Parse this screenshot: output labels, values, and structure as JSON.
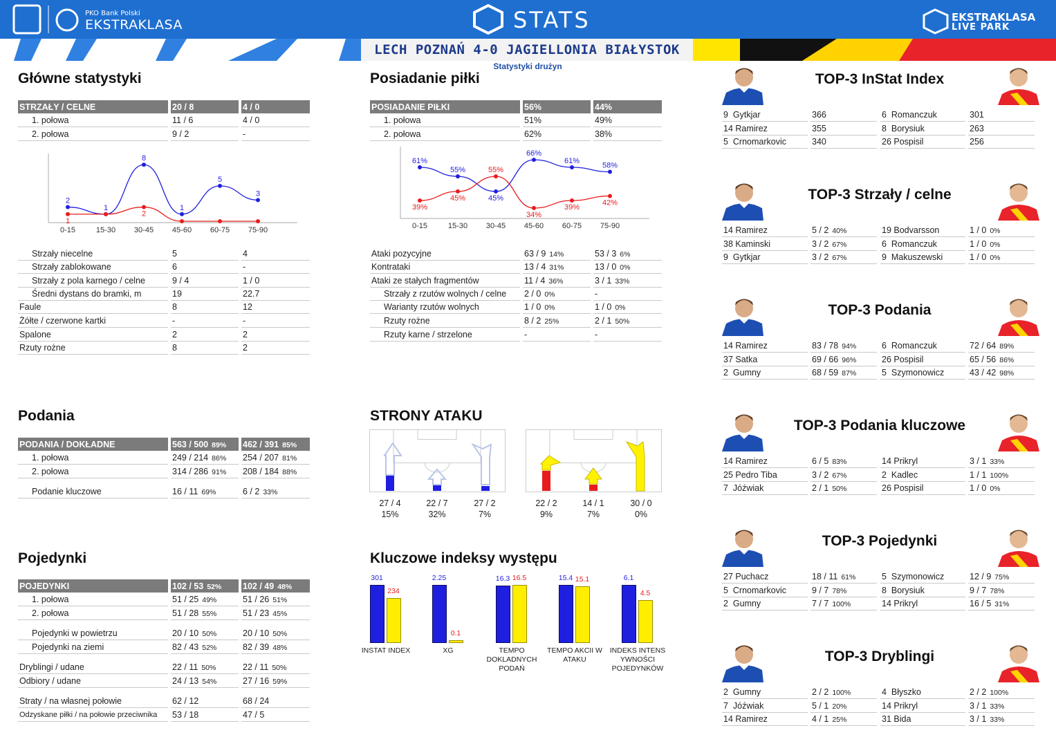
{
  "header": {
    "brand_top": "PKO Bank Polski",
    "brand": "EKSTRAKLASA",
    "stats": "STATS",
    "live1": "EKSTRAKLASA",
    "live2": "LIVE PARK",
    "score": "LECH POZNAŃ 4-0 JAGIELLONIA BIAŁYSTOK",
    "subtitle": "Statystyki drużyn"
  },
  "colors": {
    "home": "#1f1fe0",
    "away": "#e81c1c",
    "yellow": "#ffee00",
    "header_blue": "#1e6fd0"
  },
  "main_stats": {
    "title": "Główne statystyki",
    "header": [
      "STRZAŁY / CELNE",
      "20 / 8",
      "4 / 0"
    ],
    "halves": [
      [
        "1. połowa",
        "11 / 6",
        "4 / 0"
      ],
      [
        "2. połowa",
        "9 / 2",
        "-"
      ]
    ],
    "rows": [
      [
        "Strzały niecelne",
        "5",
        "4"
      ],
      [
        "Strzały zablokowane",
        "6",
        "-"
      ],
      [
        "Strzały z pola karnego / celne",
        "9 / 4",
        "1 / 0"
      ],
      [
        "Średni dystans do bramki, m",
        "19",
        "22.7"
      ],
      [
        "Faule",
        "8",
        "12"
      ],
      [
        "Żółte / czerwone kartki",
        "-",
        "-"
      ],
      [
        "Spalone",
        "2",
        "2"
      ],
      [
        "Rzuty rożne",
        "8",
        "2"
      ]
    ]
  },
  "possession": {
    "title": "Posiadanie piłki",
    "header": [
      "POSIADANIE PIŁKI",
      "56%",
      "44%"
    ],
    "halves": [
      [
        "1. połowa",
        "51%",
        "49%"
      ],
      [
        "2. połowa",
        "62%",
        "38%"
      ]
    ],
    "rows": [
      [
        "Ataki pozycyjne",
        "63 / 9",
        "14%",
        "53 / 3",
        "6%"
      ],
      [
        "Kontrataki",
        "13 / 4",
        "31%",
        "13 / 0",
        "0%"
      ],
      [
        "Ataki ze stałych fragmentów",
        "11 / 4",
        "36%",
        "3 / 1",
        "33%"
      ],
      [
        "Strzały z rzutów wolnych / celne",
        "2 / 0",
        "0%",
        "-",
        ""
      ],
      [
        "Warianty rzutów wolnych",
        "1 / 0",
        "0%",
        "1 / 0",
        "0%"
      ],
      [
        "Rzuty rożne",
        "8 / 2",
        "25%",
        "2 / 1",
        "50%"
      ],
      [
        "Rzuty karne / strzelone",
        "-",
        "",
        "-",
        ""
      ]
    ]
  },
  "passes": {
    "title": "Podania",
    "header": [
      "PODANIA / DOKŁADNE",
      "563 / 500",
      "89%",
      "462 / 391",
      "85%"
    ],
    "rows": [
      [
        "1. połowa",
        "249 / 214",
        "86%",
        "254 / 207",
        "81%"
      ],
      [
        "2. połowa",
        "314 / 286",
        "91%",
        "208 / 184",
        "88%"
      ]
    ],
    "key": [
      "Podanie kluczowe",
      "16 / 11",
      "69%",
      "6 / 2",
      "33%"
    ]
  },
  "duels": {
    "title": "Pojedynki",
    "header": [
      "POJEDYNKI",
      "102 / 53",
      "52%",
      "102 / 49",
      "48%"
    ],
    "halves": [
      [
        "1. połowa",
        "51 / 25",
        "49%",
        "51 / 26",
        "51%"
      ],
      [
        "2. połowa",
        "51 / 28",
        "55%",
        "51 / 23",
        "45%"
      ]
    ],
    "g2": [
      [
        "Pojedynki w powietrzu",
        "20 / 10",
        "50%",
        "20 / 10",
        "50%"
      ],
      [
        "Pojedynki na ziemi",
        "82 / 43",
        "52%",
        "82 / 39",
        "48%"
      ]
    ],
    "g3": [
      [
        "Dryblingi / udane",
        "22 / 11",
        "50%",
        "22 / 11",
        "50%"
      ],
      [
        "Odbiory / udane",
        "24 / 13",
        "54%",
        "27 / 16",
        "59%"
      ]
    ],
    "g4": [
      [
        "Straty / na własnej połowie",
        "62 / 12",
        "",
        "68 / 24",
        ""
      ],
      [
        "Odzyskane piłki / na połowie przeciwnika",
        "53 / 18",
        "",
        "47 / 5",
        ""
      ]
    ]
  },
  "attack": {
    "title": "STRONY ATAKU",
    "home": [
      [
        "27 / 4",
        "15%"
      ],
      [
        "22 / 7",
        "32%"
      ],
      [
        "27 / 2",
        "7%"
      ]
    ],
    "away": [
      [
        "22 / 2",
        "9%"
      ],
      [
        "14 / 1",
        "7%"
      ],
      [
        "30 / 0",
        "0%"
      ]
    ]
  },
  "indices": {
    "title": "Kluczowe indeksy występu",
    "items": [
      {
        "label": "INSTAT INDEX",
        "home": 301,
        "away": 234,
        "home_label": "301",
        "away_label": "234",
        "max": 301
      },
      {
        "label": "XG",
        "home": 2.25,
        "away": 0.1,
        "home_label": "2.25",
        "away_label": "0.1",
        "max": 2.25
      },
      {
        "label": "TEMPO DOKLADNYCH PODAŃ",
        "home": 16.3,
        "away": 16.5,
        "home_label": "16.3",
        "away_label": "16.5",
        "max": 16.5
      },
      {
        "label": "TEMPO AKCII W ATAKU",
        "home": 15.4,
        "away": 15.1,
        "home_label": "15.4",
        "away_label": "15.1",
        "max": 15.4
      },
      {
        "label": "INDEKS INTENS YWNOŚCI POJEDYNKÓW",
        "home": 6.1,
        "away": 4.5,
        "home_label": "6.1",
        "away_label": "4.5",
        "max": 6.1
      }
    ]
  },
  "chart_data": [
    {
      "type": "line",
      "categories": [
        "0-15",
        "15-30",
        "30-45",
        "45-60",
        "60-75",
        "75-90"
      ],
      "series": [
        {
          "values": [
            2,
            1,
            8,
            1,
            5,
            3
          ]
        },
        {
          "values": [
            1,
            1,
            2,
            0,
            0,
            0
          ]
        }
      ],
      "data_labels_home": [
        "2",
        "1",
        "8",
        "1",
        "5",
        "3"
      ],
      "data_labels_away": [
        "1",
        "",
        "2",
        "",
        "",
        ""
      ],
      "ylim": [
        0,
        9
      ]
    },
    {
      "type": "line",
      "categories": [
        "0-15",
        "15-30",
        "30-45",
        "45-60",
        "60-75",
        "75-90"
      ],
      "series": [
        {
          "values": [
            61,
            55,
            45,
            66,
            61,
            58
          ]
        },
        {
          "values": [
            39,
            45,
            55,
            34,
            39,
            42
          ]
        }
      ],
      "data_labels_home": [
        "61%",
        "55%",
        "45%",
        "66%",
        "61%",
        "58%"
      ],
      "data_labels_away": [
        "39%",
        "45%",
        "55%",
        "34%",
        "39%",
        "42%"
      ],
      "ylim": [
        28,
        72
      ]
    }
  ],
  "tops": [
    {
      "title": "TOP-3 InStat Index",
      "rows": [
        [
          "9  Gytkjar",
          "366",
          "",
          "6  Romanczuk",
          "301",
          ""
        ],
        [
          "14 Ramirez",
          "355",
          "",
          "8  Borysiuk",
          "263",
          ""
        ],
        [
          "5  Crnomarkovic",
          "340",
          "",
          "26 Pospisil",
          "256",
          ""
        ]
      ]
    },
    {
      "title": "TOP-3 Strzały / celne",
      "rows": [
        [
          "14 Ramirez",
          "5 / 2",
          "40%",
          "19 Bodvarsson",
          "1 / 0",
          "0%"
        ],
        [
          "38 Kaminski",
          "3 / 2",
          "67%",
          "6  Romanczuk",
          "1 / 0",
          "0%"
        ],
        [
          "9  Gytkjar",
          "3 / 2",
          "67%",
          "9  Makuszewski",
          "1 / 0",
          "0%"
        ]
      ]
    },
    {
      "title": "TOP-3 Podania",
      "rows": [
        [
          "14 Ramirez",
          "83 / 78",
          "94%",
          "6  Romanczuk",
          "72 / 64",
          "89%"
        ],
        [
          "37 Satka",
          "69 / 66",
          "96%",
          "26 Pospisil",
          "65 / 56",
          "86%"
        ],
        [
          "2  Gumny",
          "68 / 59",
          "87%",
          "5  Szymonowicz",
          "43 / 42",
          "98%"
        ]
      ]
    },
    {
      "title": "TOP-3 Podania kluczowe",
      "rows": [
        [
          "14 Ramirez",
          "6 / 5",
          "83%",
          "14 Prikryl",
          "3 / 1",
          "33%"
        ],
        [
          "25 Pedro Tiba",
          "3 / 2",
          "67%",
          "2  Kadlec",
          "1 / 1",
          "100%"
        ],
        [
          "7  Jóźwiak",
          "2 / 1",
          "50%",
          "26 Pospisil",
          "1 / 0",
          "0%"
        ]
      ]
    },
    {
      "title": "TOP-3 Pojedynki",
      "rows": [
        [
          "27 Puchacz",
          "18 / 11",
          "61%",
          "5  Szymonowicz",
          "12 / 9",
          "75%"
        ],
        [
          "5  Crnomarkovic",
          "9 / 7",
          "78%",
          "8  Borysiuk",
          "9 / 7",
          "78%"
        ],
        [
          "2  Gumny",
          "7 / 7",
          "100%",
          "14 Prikryl",
          "16 / 5",
          "31%"
        ]
      ]
    },
    {
      "title": "TOP-3 Dryblingi",
      "rows": [
        [
          "2  Gumny",
          "2 / 2",
          "100%",
          "4  Błyszko",
          "2 / 2",
          "100%"
        ],
        [
          "7  Jóźwiak",
          "5 / 1",
          "20%",
          "14 Prikryl",
          "3 / 1",
          "33%"
        ],
        [
          "14 Ramirez",
          "4 / 1",
          "25%",
          "31 Bida",
          "3 / 1",
          "33%"
        ]
      ]
    }
  ]
}
